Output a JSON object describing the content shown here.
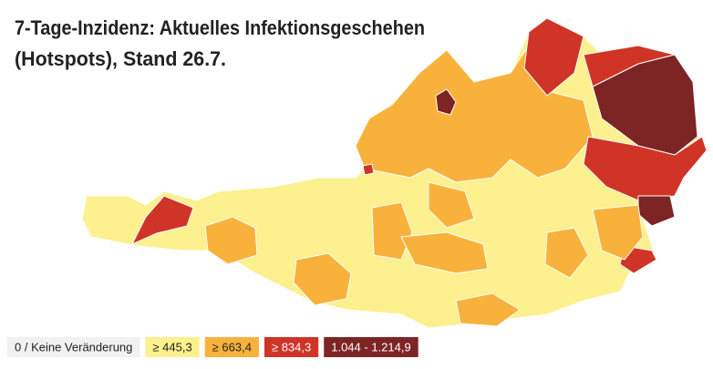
{
  "header": {
    "title_lines": [
      "7-Tage-Inzidenz: Aktuelles Infektionsgeschehen",
      "(Hotspots), Stand 26.7."
    ]
  },
  "legend": {
    "items": [
      {
        "label": "0 / Keine Veränderung",
        "color": "#f1f1f1",
        "text_color": "#222222"
      },
      {
        "label": "≥ 445,3",
        "color": "#fdf08e",
        "text_color": "#222222"
      },
      {
        "label": "≥ 663,4",
        "color": "#f8b23c",
        "text_color": "#222222"
      },
      {
        "label": "≥ 834,3",
        "color": "#cf3427",
        "text_color": "#ffffff"
      },
      {
        "label": "1.044 - 1.214,9",
        "color": "#7d2424",
        "text_color": "#ffffff"
      }
    ]
  }
}
